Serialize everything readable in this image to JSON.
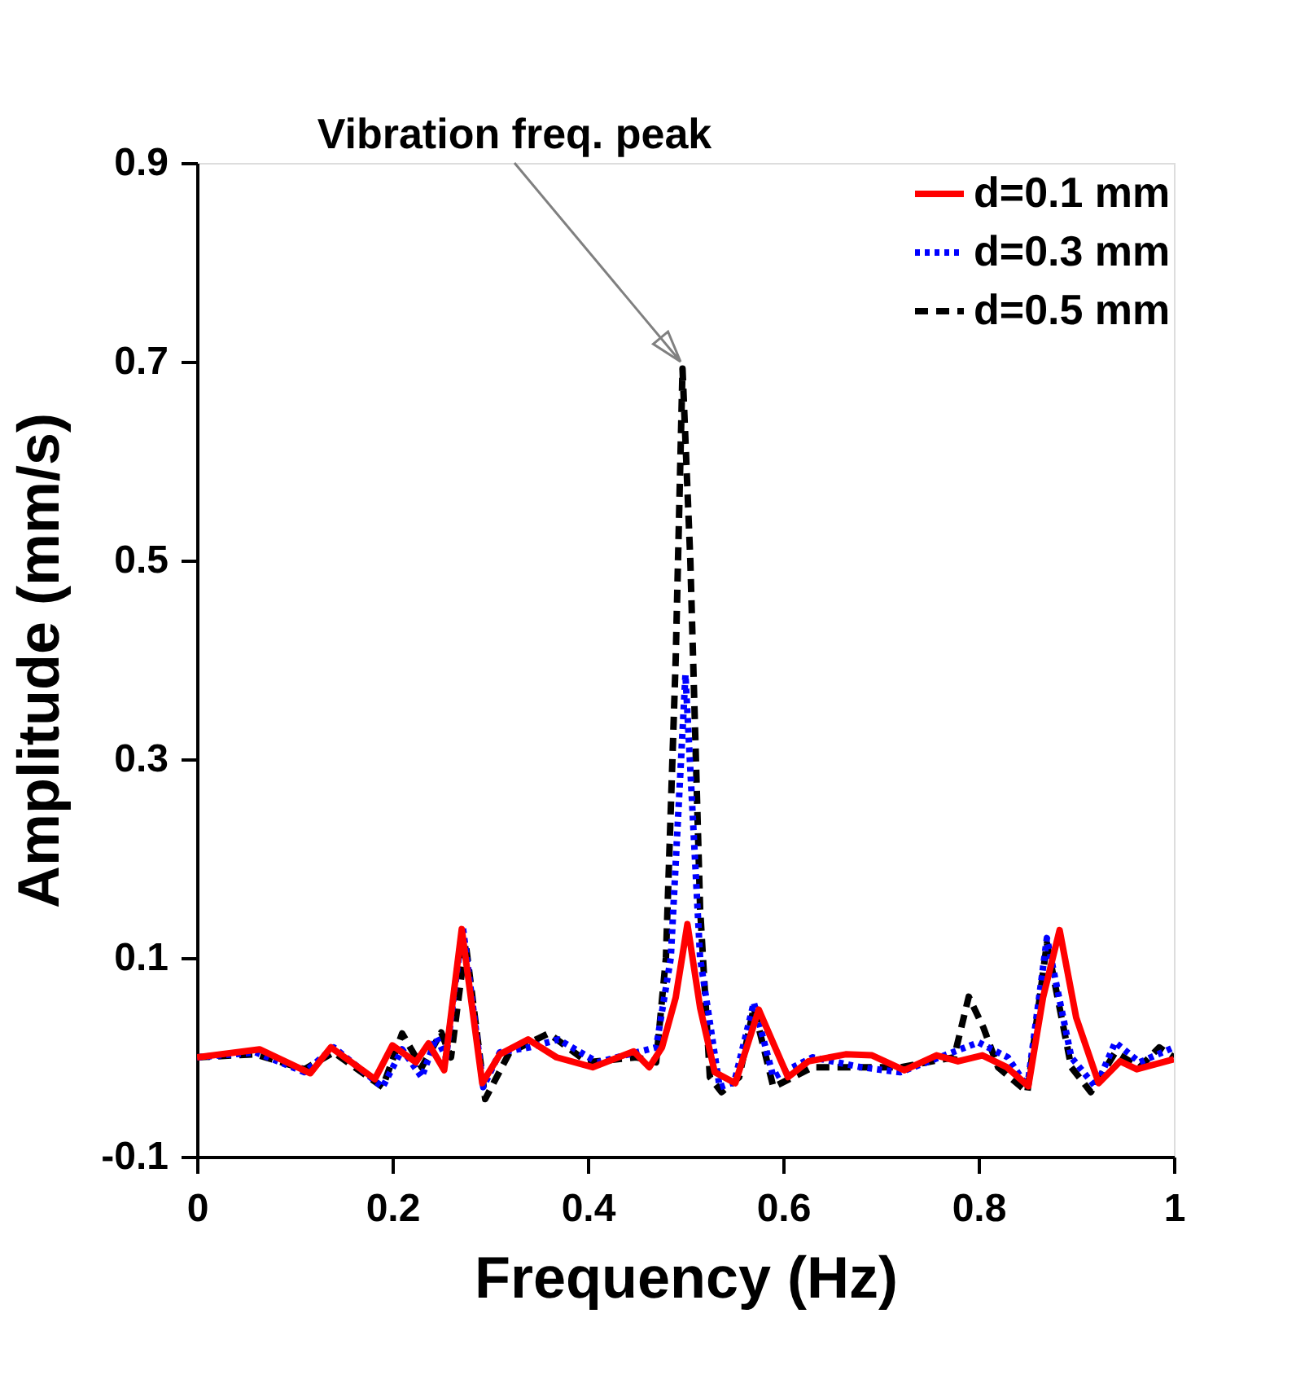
{
  "chart_data": {
    "type": "line",
    "xlabel": "Frequency (Hz)",
    "ylabel": "Amplitude (mm/s)",
    "xlim": [
      0,
      1
    ],
    "xticks": [
      0,
      0.2,
      0.4,
      0.6,
      0.8,
      1
    ],
    "ylim": [
      -0.1,
      0.9
    ],
    "yticks": [
      -0.1,
      0.1,
      0.3,
      0.5,
      0.7,
      0.9
    ],
    "grid": false,
    "legend": "top right",
    "marker": "none",
    "annotations": [
      {
        "text": "Vibration freq. peak",
        "x": 0.495,
        "y": 0.7
      }
    ],
    "series": [
      {
        "name": "d=0.1 mm",
        "color": "#ff0000",
        "line_style": "solid",
        "x": [
          0,
          0.064,
          0.116,
          0.137,
          0.182,
          0.2,
          0.224,
          0.237,
          0.253,
          0.271,
          0.292,
          0.31,
          0.339,
          0.368,
          0.405,
          0.447,
          0.463,
          0.476,
          0.49,
          0.502,
          0.515,
          0.53,
          0.551,
          0.575,
          0.605,
          0.626,
          0.664,
          0.691,
          0.724,
          0.757,
          0.779,
          0.804,
          0.829,
          0.851,
          0.866,
          0.883,
          0.9,
          0.923,
          0.945,
          0.962,
          1.0
        ],
        "values": [
          0,
          0.008,
          -0.016,
          0.01,
          -0.022,
          0.012,
          -0.005,
          0.014,
          -0.013,
          0.129,
          -0.026,
          0.003,
          0.018,
          0,
          -0.01,
          0.006,
          -0.01,
          0.01,
          0.06,
          0.134,
          0.05,
          -0.015,
          -0.026,
          0.048,
          -0.02,
          -0.004,
          0.003,
          0.002,
          -0.013,
          0.002,
          -0.004,
          0.002,
          -0.01,
          -0.029,
          0.06,
          0.128,
          0.04,
          -0.026,
          -0.004,
          -0.012,
          -0.002
        ]
      },
      {
        "name": "d=0.3 mm",
        "color": "#0000ff",
        "line_style": "dotted",
        "x": [
          0,
          0.06,
          0.11,
          0.14,
          0.19,
          0.21,
          0.23,
          0.245,
          0.255,
          0.272,
          0.293,
          0.31,
          0.34,
          0.37,
          0.41,
          0.45,
          0.47,
          0.485,
          0.5,
          0.515,
          0.535,
          0.55,
          0.57,
          0.59,
          0.63,
          0.68,
          0.72,
          0.76,
          0.8,
          0.83,
          0.85,
          0.87,
          0.895,
          0.92,
          0.94,
          0.965,
          1.0
        ],
        "values": [
          0,
          0.005,
          -0.015,
          0.01,
          -0.03,
          0.008,
          -0.02,
          0.02,
          0,
          0.132,
          -0.03,
          0.005,
          0.01,
          0.018,
          -0.005,
          0.005,
          0.01,
          0.1,
          0.385,
          0.1,
          -0.03,
          -0.025,
          0.055,
          -0.02,
          0,
          -0.01,
          -0.015,
          0,
          0.015,
          0,
          -0.03,
          0.12,
          0,
          -0.03,
          0.015,
          -0.005,
          0.01
        ]
      },
      {
        "name": "d=0.5 mm",
        "color": "#000000",
        "line_style": "dashed",
        "x": [
          0,
          0.06,
          0.11,
          0.14,
          0.19,
          0.21,
          0.23,
          0.25,
          0.26,
          0.275,
          0.295,
          0.32,
          0.36,
          0.4,
          0.45,
          0.47,
          0.48,
          0.49,
          0.497,
          0.505,
          0.515,
          0.525,
          0.537,
          0.555,
          0.57,
          0.59,
          0.63,
          0.68,
          0.72,
          0.775,
          0.79,
          0.805,
          0.82,
          0.85,
          0.87,
          0.895,
          0.915,
          0.94,
          0.965,
          0.985,
          1.0
        ],
        "values": [
          0,
          0.003,
          -0.012,
          0.005,
          -0.03,
          0.024,
          -0.01,
          0.025,
          0,
          0.115,
          -0.042,
          0.005,
          0.024,
          -0.005,
          0,
          -0.005,
          0.1,
          0.4,
          0.693,
          0.5,
          0.15,
          -0.02,
          -0.035,
          -0.02,
          0.05,
          -0.03,
          -0.01,
          -0.01,
          -0.01,
          0,
          0.061,
          0.03,
          -0.01,
          -0.035,
          0.115,
          -0.01,
          -0.035,
          0.005,
          -0.01,
          0.01,
          0
        ]
      }
    ]
  }
}
